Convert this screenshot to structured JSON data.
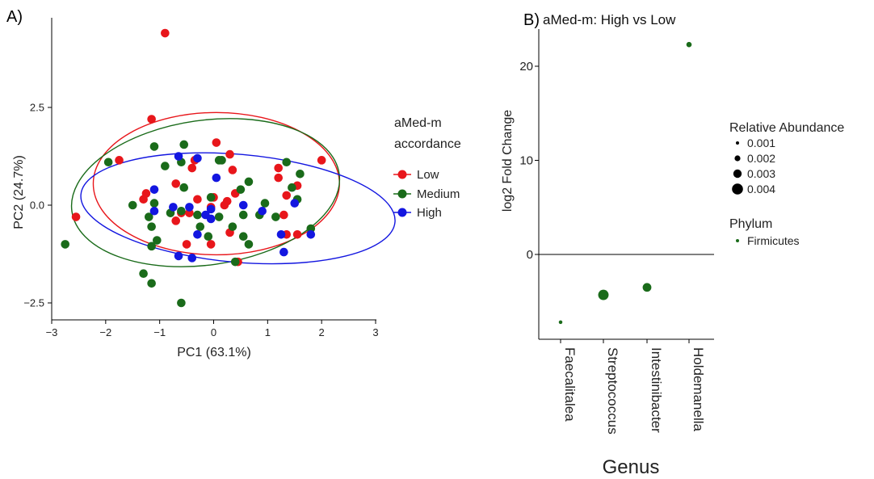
{
  "colors": {
    "Low": "#e8161b",
    "Medium": "#1a6b1a",
    "High": "#1316e0",
    "Firmicutes": "#1a6b1a",
    "axis": "#000000"
  },
  "chart_data": [
    {
      "type": "scatter",
      "panel_label": "A)",
      "title": "",
      "xlabel": "PC1 (63.1%)",
      "ylabel": "PC2 (24.7%)",
      "xlim": [
        -3,
        3
      ],
      "ylim": [
        -2.75,
        4.8
      ],
      "x_ticks": [
        -3,
        -2,
        -1,
        0,
        1,
        2,
        3
      ],
      "x_tick_labels": [
        "−3",
        "−2",
        "−1",
        "0",
        "1",
        "2",
        "3"
      ],
      "y_ticks": [
        -2.5,
        0,
        2.5
      ],
      "y_tick_labels": [
        "−2.5",
        "0.0",
        "2.5"
      ],
      "grid": false,
      "legend_position": "right",
      "legend_title": [
        "aMed-m",
        "accordance"
      ],
      "series": [
        {
          "name": "Low",
          "points": [
            [
              -0.9,
              4.4
            ],
            [
              -1.15,
              2.2
            ],
            [
              -2.55,
              -0.3
            ],
            [
              -1.75,
              1.15
            ],
            [
              -1.3,
              0.15
            ],
            [
              -1.25,
              0.3
            ],
            [
              -0.7,
              0.55
            ],
            [
              -0.4,
              0.95
            ],
            [
              -0.35,
              1.15
            ],
            [
              0.05,
              1.6
            ],
            [
              0.3,
              1.3
            ],
            [
              0.35,
              0.9
            ],
            [
              0.25,
              0.1
            ],
            [
              0.4,
              0.3
            ],
            [
              0,
              0.2
            ],
            [
              -0.3,
              0.15
            ],
            [
              -0.05,
              -0.05
            ],
            [
              -0.6,
              -0.2
            ],
            [
              -0.7,
              -0.4
            ],
            [
              -0.5,
              -1.0
            ],
            [
              -0.05,
              -1.0
            ],
            [
              0.45,
              -1.45
            ],
            [
              0.3,
              -0.7
            ],
            [
              1.2,
              0.95
            ],
            [
              1.2,
              0.7
            ],
            [
              1.35,
              0.25
            ],
            [
              1.55,
              0.5
            ],
            [
              1.3,
              -0.25
            ],
            [
              1.35,
              -0.75
            ],
            [
              1.55,
              -0.75
            ],
            [
              2.0,
              1.15
            ],
            [
              -0.45,
              -0.2
            ],
            [
              0.2,
              0.0
            ]
          ]
        },
        {
          "name": "Medium",
          "points": [
            [
              -1.95,
              1.1
            ],
            [
              -1.1,
              1.5
            ],
            [
              -0.55,
              1.55
            ],
            [
              -0.6,
              1.1
            ],
            [
              -0.9,
              1.0
            ],
            [
              -1.5,
              0.0
            ],
            [
              -1.2,
              -0.3
            ],
            [
              -1.15,
              -0.55
            ],
            [
              -1.05,
              -0.9
            ],
            [
              -0.8,
              -0.2
            ],
            [
              -0.6,
              -0.15
            ],
            [
              -0.55,
              0.45
            ],
            [
              -0.3,
              -0.25
            ],
            [
              -0.25,
              -0.55
            ],
            [
              -0.1,
              -0.8
            ],
            [
              0.1,
              1.15
            ],
            [
              0.15,
              1.15
            ],
            [
              0.5,
              0.4
            ],
            [
              0.55,
              -0.25
            ],
            [
              0.65,
              0.6
            ],
            [
              0.35,
              -0.55
            ],
            [
              0.55,
              -0.8
            ],
            [
              0.4,
              -1.45
            ],
            [
              0.65,
              -1.0
            ],
            [
              0.85,
              -0.25
            ],
            [
              0.95,
              0.05
            ],
            [
              1.15,
              -0.3
            ],
            [
              1.35,
              1.1
            ],
            [
              1.45,
              0.45
            ],
            [
              1.55,
              0.15
            ],
            [
              1.6,
              0.8
            ],
            [
              1.8,
              -0.6
            ],
            [
              -0.6,
              -2.5
            ],
            [
              -1.15,
              -2.0
            ],
            [
              -1.3,
              -1.75
            ],
            [
              -2.75,
              -1.0
            ],
            [
              -1.1,
              0.05
            ],
            [
              -0.05,
              0.2
            ],
            [
              -1.15,
              -1.05
            ],
            [
              0.1,
              -0.3
            ]
          ]
        },
        {
          "name": "High",
          "points": [
            [
              -0.65,
              1.25
            ],
            [
              -0.3,
              1.2
            ],
            [
              -1.1,
              0.4
            ],
            [
              -1.1,
              -0.15
            ],
            [
              -0.75,
              -0.05
            ],
            [
              -0.45,
              -0.05
            ],
            [
              -0.15,
              -0.25
            ],
            [
              -0.05,
              -0.35
            ],
            [
              -0.05,
              -0.1
            ],
            [
              -0.3,
              -0.75
            ],
            [
              -0.65,
              -1.3
            ],
            [
              -0.4,
              -1.35
            ],
            [
              0.05,
              0.7
            ],
            [
              0.55,
              0.0
            ],
            [
              0.9,
              -0.15
            ],
            [
              1.25,
              -0.75
            ],
            [
              1.3,
              -1.2
            ],
            [
              1.5,
              0.05
            ],
            [
              1.8,
              -0.75
            ]
          ]
        }
      ],
      "ellipses": [
        {
          "series": "Low",
          "center": [
            0.05,
            0.55
          ],
          "semi_axes": [
            2.28,
            1.82
          ],
          "angle_deg": 0
        },
        {
          "series": "Medium",
          "center": [
            -0.15,
            0.32
          ],
          "semi_axes": [
            2.5,
            1.85
          ],
          "angle_deg": 8
        },
        {
          "series": "High",
          "center": [
            0.45,
            -0.08
          ],
          "semi_axes": [
            2.92,
            1.38
          ],
          "angle_deg": -5
        }
      ]
    },
    {
      "type": "scatter",
      "panel_label": "B)",
      "title": "aMed-m: High vs Low",
      "xlabel": "Genus",
      "ylabel": "log2 Fold Change",
      "categories": [
        "Faecalitalea",
        "Streptococcus",
        "Intestinibacter",
        "Holdemanella"
      ],
      "values": [
        -7.2,
        -4.3,
        -3.5,
        22.3
      ],
      "relative_abundance": [
        0.001,
        0.003,
        0.0025,
        0.0015
      ],
      "phylum": [
        "Firmicutes",
        "Firmicutes",
        "Firmicutes",
        "Firmicutes"
      ],
      "ylim": [
        -8.9,
        24.5
      ],
      "y_ticks": [
        0,
        10,
        20
      ],
      "y_tick_labels": [
        "0",
        "10",
        "20"
      ],
      "hline": 0,
      "grid": false,
      "legend_position": "right",
      "size_legend": {
        "title": "Relative Abundance",
        "values": [
          "0.001",
          "0.002",
          "0.003",
          "0.004"
        ]
      },
      "color_legend": {
        "title": "Phylum",
        "values": [
          "Firmicutes"
        ]
      }
    }
  ]
}
